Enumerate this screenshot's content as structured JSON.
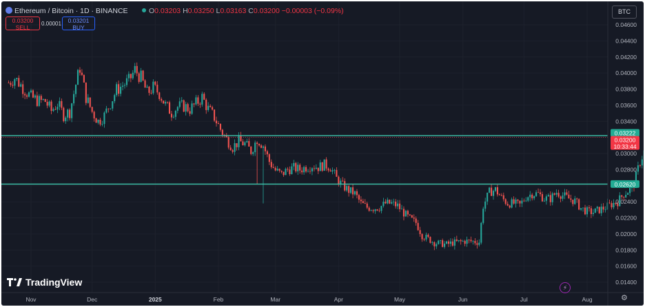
{
  "header": {
    "symbol": "Ethereum / Bitcoin · 1D · BINANCE",
    "open_label": "O",
    "open": "0.03203",
    "high_label": "H",
    "high": "0.03250",
    "low_label": "L",
    "low": "0.03163",
    "close_label": "C",
    "close": "0.03200",
    "change": "−0.00003 (−0.09%)"
  },
  "order_buttons": {
    "sell_price": "0.03200",
    "sell_label": "SELL",
    "spread": "0.00001",
    "buy_price": "0.03201",
    "buy_label": "BUY"
  },
  "currency_label": "BTC",
  "logo_text": "TradingView",
  "colors": {
    "up": "#26a69a",
    "down": "#ef5350",
    "level": "#3fc7ae",
    "price": "#f23645",
    "background": "#161a25"
  },
  "price_tags": {
    "resistance": "0.03222",
    "current": "0.03200",
    "countdown": "10:33:44",
    "support": "0.02620"
  },
  "chart_data": {
    "type": "candlestick",
    "title": "Ethereum / Bitcoin · 1D · BINANCE",
    "ylim": [
      0.013,
      0.048
    ],
    "y_ticks": [
      "0.04600",
      "0.04400",
      "0.04200",
      "0.04000",
      "0.03800",
      "0.03600",
      "0.03400",
      "0.03200",
      "0.03000",
      "0.02800",
      "0.02600",
      "0.02400",
      "0.02200",
      "0.02000",
      "0.01800",
      "0.01600",
      "0.01400"
    ],
    "x_ticks": [
      {
        "label": "Nov",
        "date": "2024-11-01"
      },
      {
        "label": "Dec",
        "date": "2024-12-01"
      },
      {
        "label": "2025",
        "date": "2025-01-01"
      },
      {
        "label": "Feb",
        "date": "2025-02-01"
      },
      {
        "label": "Mar",
        "date": "2025-03-01"
      },
      {
        "label": "Apr",
        "date": "2025-04-01"
      },
      {
        "label": "May",
        "date": "2025-05-01"
      },
      {
        "label": "Jun",
        "date": "2025-06-01"
      },
      {
        "label": "Jul",
        "date": "2025-07-01"
      },
      {
        "label": "Aug",
        "date": "2025-08-01"
      }
    ],
    "horizontal_levels": [
      0.03222,
      0.0262
    ],
    "first_date": "2024-10-21",
    "close_path": [
      [
        "2024-10-21",
        0.0388
      ],
      [
        "2024-10-24",
        0.0394
      ],
      [
        "2024-10-28",
        0.0382
      ],
      [
        "2024-11-01",
        0.037
      ],
      [
        "2024-11-05",
        0.0365
      ],
      [
        "2024-11-08",
        0.0365
      ],
      [
        "2024-11-11",
        0.0353
      ],
      [
        "2024-11-14",
        0.0362
      ],
      [
        "2024-11-17",
        0.0348
      ],
      [
        "2024-11-20",
        0.0352
      ],
      [
        "2024-11-23",
        0.0386
      ],
      [
        "2024-11-25",
        0.0407
      ],
      [
        "2024-11-28",
        0.037
      ],
      [
        "2024-12-01",
        0.0352
      ],
      [
        "2024-12-04",
        0.034
      ],
      [
        "2024-12-07",
        0.0347
      ],
      [
        "2024-12-10",
        0.0363
      ],
      [
        "2024-12-13",
        0.0379
      ],
      [
        "2024-12-16",
        0.0385
      ],
      [
        "2024-12-19",
        0.039
      ],
      [
        "2024-12-22",
        0.0404
      ],
      [
        "2024-12-25",
        0.0394
      ],
      [
        "2024-12-28",
        0.0375
      ],
      [
        "2024-12-31",
        0.0382
      ],
      [
        "2025-01-03",
        0.0375
      ],
      [
        "2025-01-06",
        0.036
      ],
      [
        "2025-01-09",
        0.0351
      ],
      [
        "2025-01-12",
        0.0358
      ],
      [
        "2025-01-15",
        0.0359
      ],
      [
        "2025-01-18",
        0.0355
      ],
      [
        "2025-01-21",
        0.0362
      ],
      [
        "2025-01-24",
        0.037
      ],
      [
        "2025-01-27",
        0.0355
      ],
      [
        "2025-01-30",
        0.0345
      ],
      [
        "2025-02-02",
        0.033
      ],
      [
        "2025-02-05",
        0.0318
      ],
      [
        "2025-02-08",
        0.0308
      ],
      [
        "2025-02-11",
        0.0315
      ],
      [
        "2025-02-14",
        0.0312
      ],
      [
        "2025-02-17",
        0.0303
      ],
      [
        "2025-02-20",
        0.0318
      ],
      [
        "2025-02-23",
        0.031
      ],
      [
        "2025-02-26",
        0.029
      ],
      [
        "2025-03-01",
        0.0279
      ],
      [
        "2025-03-04",
        0.0274
      ],
      [
        "2025-03-07",
        0.028
      ],
      [
        "2025-03-10",
        0.0282
      ],
      [
        "2025-03-13",
        0.028
      ],
      [
        "2025-03-16",
        0.0283
      ],
      [
        "2025-03-19",
        0.0285
      ],
      [
        "2025-03-22",
        0.0283
      ],
      [
        "2025-03-25",
        0.0286
      ],
      [
        "2025-03-28",
        0.0283
      ],
      [
        "2025-03-31",
        0.0269
      ],
      [
        "2025-04-03",
        0.026
      ],
      [
        "2025-04-06",
        0.0254
      ],
      [
        "2025-04-09",
        0.025
      ],
      [
        "2025-04-12",
        0.0238
      ],
      [
        "2025-04-15",
        0.0233
      ],
      [
        "2025-04-18",
        0.0232
      ],
      [
        "2025-04-21",
        0.0233
      ],
      [
        "2025-04-24",
        0.0238
      ],
      [
        "2025-04-27",
        0.0238
      ],
      [
        "2025-04-30",
        0.0235
      ],
      [
        "2025-05-03",
        0.0226
      ],
      [
        "2025-05-06",
        0.0219
      ],
      [
        "2025-05-09",
        0.0214
      ],
      [
        "2025-05-12",
        0.0198
      ],
      [
        "2025-05-15",
        0.0194
      ],
      [
        "2025-05-18",
        0.0189
      ],
      [
        "2025-05-21",
        0.0188
      ],
      [
        "2025-05-24",
        0.0187
      ],
      [
        "2025-05-27",
        0.0189
      ],
      [
        "2025-05-30",
        0.019
      ],
      [
        "2025-06-02",
        0.0191
      ],
      [
        "2025-06-05",
        0.0191
      ],
      [
        "2025-06-08",
        0.019
      ],
      [
        "2025-06-09",
        0.019
      ],
      [
        "2025-06-11",
        0.0235
      ],
      [
        "2025-06-14",
        0.0252
      ],
      [
        "2025-06-17",
        0.0255
      ],
      [
        "2025-06-20",
        0.0245
      ],
      [
        "2025-06-23",
        0.0238
      ],
      [
        "2025-06-26",
        0.0238
      ],
      [
        "2025-06-29",
        0.0236
      ],
      [
        "2025-07-02",
        0.0246
      ],
      [
        "2025-07-05",
        0.025
      ],
      [
        "2025-07-08",
        0.025
      ],
      [
        "2025-07-11",
        0.0244
      ],
      [
        "2025-07-14",
        0.0244
      ],
      [
        "2025-07-17",
        0.0252
      ],
      [
        "2025-07-20",
        0.0248
      ],
      [
        "2025-07-23",
        0.0244
      ],
      [
        "2025-07-26",
        0.0241
      ],
      [
        "2025-07-29",
        0.0232
      ],
      [
        "2025-08-01",
        0.0228
      ],
      [
        "2025-08-04",
        0.0227
      ],
      [
        "2025-08-07",
        0.023
      ],
      [
        "2025-08-10",
        0.0233
      ],
      [
        "2025-08-13",
        0.0237
      ],
      [
        "2025-08-16",
        0.024
      ],
      [
        "2025-08-19",
        0.025
      ],
      [
        "2025-08-22",
        0.0255
      ],
      [
        "2025-08-24",
        0.0262
      ],
      [
        "2025-08-27",
        0.029
      ],
      [
        "2025-08-30",
        0.0308
      ],
      [
        "2025-09-02",
        0.0316
      ],
      [
        "2025-09-04",
        0.032
      ]
    ]
  }
}
